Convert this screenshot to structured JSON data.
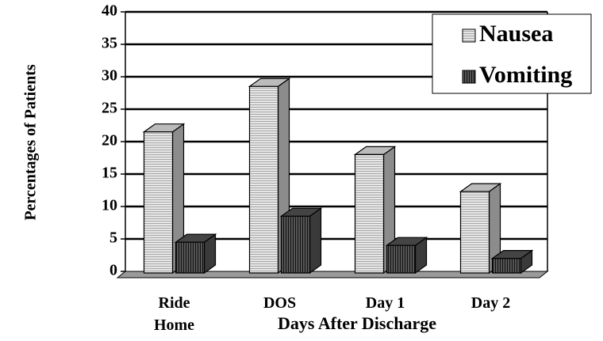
{
  "chart_data": {
    "type": "bar3d",
    "categories": [
      "Ride Home",
      "DOS",
      "Day 1",
      "Day 2"
    ],
    "series": [
      {
        "name": "Nausea",
        "color": "#d4d4d4",
        "values": [
          21.5,
          28.5,
          18,
          12.3
        ]
      },
      {
        "name": "Vomiting",
        "color": "#2e2e2e",
        "values": [
          4.5,
          8.5,
          4,
          2
        ]
      }
    ],
    "ylim": [
      0,
      40
    ],
    "yticks": [
      0,
      5,
      10,
      15,
      20,
      25,
      30,
      35,
      40
    ],
    "grid": true,
    "y_label": "Percentages of Patients",
    "x_label": "Days After Discharge",
    "legend": "top-right"
  }
}
